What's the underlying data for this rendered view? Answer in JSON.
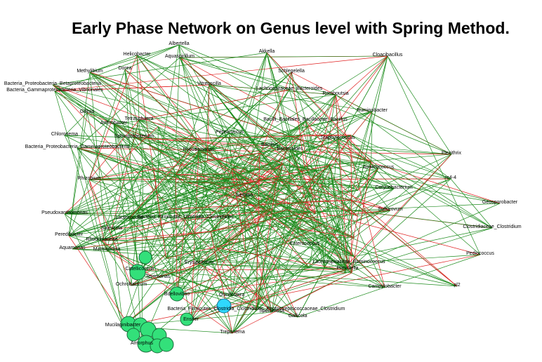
{
  "title": "Early Phase Network on Genus level with Spring Method.",
  "colors": {
    "positive_edge": "#1e8c1e",
    "negative_edge": "#e02020",
    "bubble_green": "#33e07a",
    "bubble_cyan": "#2fd8ff",
    "label": "#000000"
  },
  "nodes": [
    {
      "id": "n1",
      "label": "Helicobacter"
    },
    {
      "id": "n2",
      "label": "Albertella"
    },
    {
      "id": "n3",
      "label": "Aquaspirillum"
    },
    {
      "id": "n4",
      "label": "Akkella"
    },
    {
      "id": "n5",
      "label": "Cloacibacillus"
    },
    {
      "id": "n6",
      "label": "Methylibium"
    },
    {
      "id": "n7",
      "label": "Dorea"
    },
    {
      "id": "n8",
      "label": "Schlegelella"
    },
    {
      "id": "n9",
      "label": "Bacteria_Proteobacteria_Betaproteobacteria"
    },
    {
      "id": "n10",
      "label": "Bacteria_Gammaproteobacteria_Vibrionales"
    },
    {
      "id": "n11",
      "label": "Vitreoscilla"
    },
    {
      "id": "n12",
      "label": "Lachnospiraceae_Bacteroides"
    },
    {
      "id": "n13",
      "label": "Romboutsia"
    },
    {
      "id": "n14",
      "label": "Gillisia"
    },
    {
      "id": "n15",
      "label": "Tetrasphaera"
    },
    {
      "id": "n16",
      "label": "Arthrobacter"
    },
    {
      "id": "n17",
      "label": "Ruminobacter"
    },
    {
      "id": "n18",
      "label": "Bacilli_Bacillales_Bacillaceae_Bacillus"
    },
    {
      "id": "n19",
      "label": "Chloronema"
    },
    {
      "id": "n20",
      "label": "Bacteria_Proteobacteria_Gammaproteobacteria"
    },
    {
      "id": "n21",
      "label": "Sphingobacterium"
    },
    {
      "id": "n22",
      "label": "Staphylococcus"
    },
    {
      "id": "n23",
      "label": "Pseudomonas"
    },
    {
      "id": "n24",
      "label": "Peptococcus"
    },
    {
      "id": "n25",
      "label": "Rhizobium"
    },
    {
      "id": "n26",
      "label": "Pseudoxanthomonas"
    },
    {
      "id": "n27",
      "label": "Flexithrix"
    },
    {
      "id": "n28",
      "label": "rc4-4"
    },
    {
      "id": "n29",
      "label": "Geosporobacter"
    },
    {
      "id": "n30",
      "label": "Corynebacterium"
    },
    {
      "id": "n31",
      "label": "Anaerococcus"
    },
    {
      "id": "n32",
      "label": "Sulfurovum"
    },
    {
      "id": "n33",
      "label": "Enterococcus"
    },
    {
      "id": "n34",
      "label": "Clostridiaceae_Clostridium"
    },
    {
      "id": "n35",
      "label": "Peredibacter"
    },
    {
      "id": "n36",
      "label": "Aquamonas"
    },
    {
      "id": "n37",
      "label": "Rhodobiaceae"
    },
    {
      "id": "n38",
      "label": "Marmoricola"
    },
    {
      "id": "n39",
      "label": "Lactococcus"
    },
    {
      "id": "n40",
      "label": "Salinicola"
    },
    {
      "id": "n41",
      "label": "Bacteria_Firmicutes_Clostridia_Clostridiales"
    },
    {
      "id": "n42",
      "label": "Pediococcus"
    },
    {
      "id": "n43",
      "label": "Catellicoccus"
    },
    {
      "id": "n44",
      "label": "Terrimonas"
    },
    {
      "id": "n45",
      "label": "Ochrobactrum"
    },
    {
      "id": "n46",
      "label": "Bdellovibrio"
    },
    {
      "id": "n47",
      "label": "Oscillospira"
    },
    {
      "id": "n48",
      "label": "Bacteria_Firmicutes_Clostridia_Clostridiales_Peptostreptococcaceae_Clostridium"
    },
    {
      "id": "n49",
      "label": "Gallicola"
    },
    {
      "id": "n50",
      "label": "Mucilaginibacter"
    },
    {
      "id": "n51",
      "label": "Ensifer"
    },
    {
      "id": "n52",
      "label": "Amorphus"
    },
    {
      "id": "n53",
      "label": "Treponema"
    },
    {
      "id": "n54",
      "label": "Sporomusa"
    },
    {
      "id": "n55",
      "label": "Erysipelothrix"
    },
    {
      "id": "n56",
      "label": "pl2"
    },
    {
      "id": "n57",
      "label": "Campylobacter"
    },
    {
      "id": "n58",
      "label": "Prevotella"
    },
    {
      "id": "n59",
      "label": "Bacteroides"
    },
    {
      "id": "n60",
      "label": "Lachnospiraceae_Ruminococcus"
    },
    {
      "id": "n61",
      "label": "Bacillus"
    },
    {
      "id": "n62",
      "label": "Serratia"
    }
  ]
}
